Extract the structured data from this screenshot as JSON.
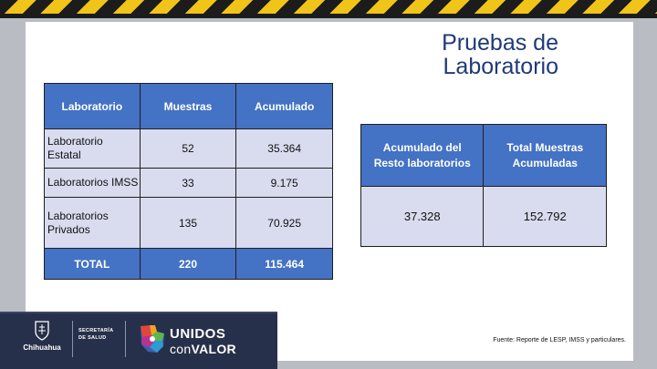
{
  "title": {
    "line1": "Pruebas de",
    "line2": "Laboratorio"
  },
  "lab_table": {
    "headers": [
      "Laboratorio",
      "Muestras",
      "Acumulado"
    ],
    "rows": [
      {
        "name_line1": "Laboratorio",
        "name_line2": "Estatal",
        "muestras": "52",
        "acumulado": "35.364"
      },
      {
        "name_line1": "Laboratorios IMSS",
        "name_line2": "",
        "muestras": "33",
        "acumulado": "9.175"
      },
      {
        "name_line1": "Laboratorios",
        "name_line2": "Privados",
        "muestras": "135",
        "acumulado": "70.925"
      }
    ],
    "total": {
      "label": "TOTAL",
      "muestras": "220",
      "acumulado": "115.464"
    }
  },
  "summary_table": {
    "headers": [
      {
        "line1": "Acumulado del",
        "line2": "Resto laboratorios"
      },
      {
        "line1": "Total Muestras",
        "line2": "Acumuladas"
      }
    ],
    "values": [
      "37.328",
      "152.792"
    ]
  },
  "footer": {
    "chihuahua": "Chihuahua",
    "secretaria_line1": "SECRETARÍA",
    "secretaria_line2": "DE SALUD",
    "unidos_line1": "UNIDOS",
    "unidos_con": "con",
    "unidos_valor": "VALOR",
    "source": "Fuente: Reporte de LESP, IMSS y particulares."
  },
  "colors": {
    "header_blue": "#4472c4",
    "cell_lavender": "#d9dcef",
    "title_navy": "#1f3a78",
    "footer_navy": "#27304a",
    "hazard_yellow": "#f0c419"
  },
  "icons": [
    "hazard-stripes",
    "chihuahua-crest-icon",
    "unidos-con-valor-logo-icon"
  ]
}
